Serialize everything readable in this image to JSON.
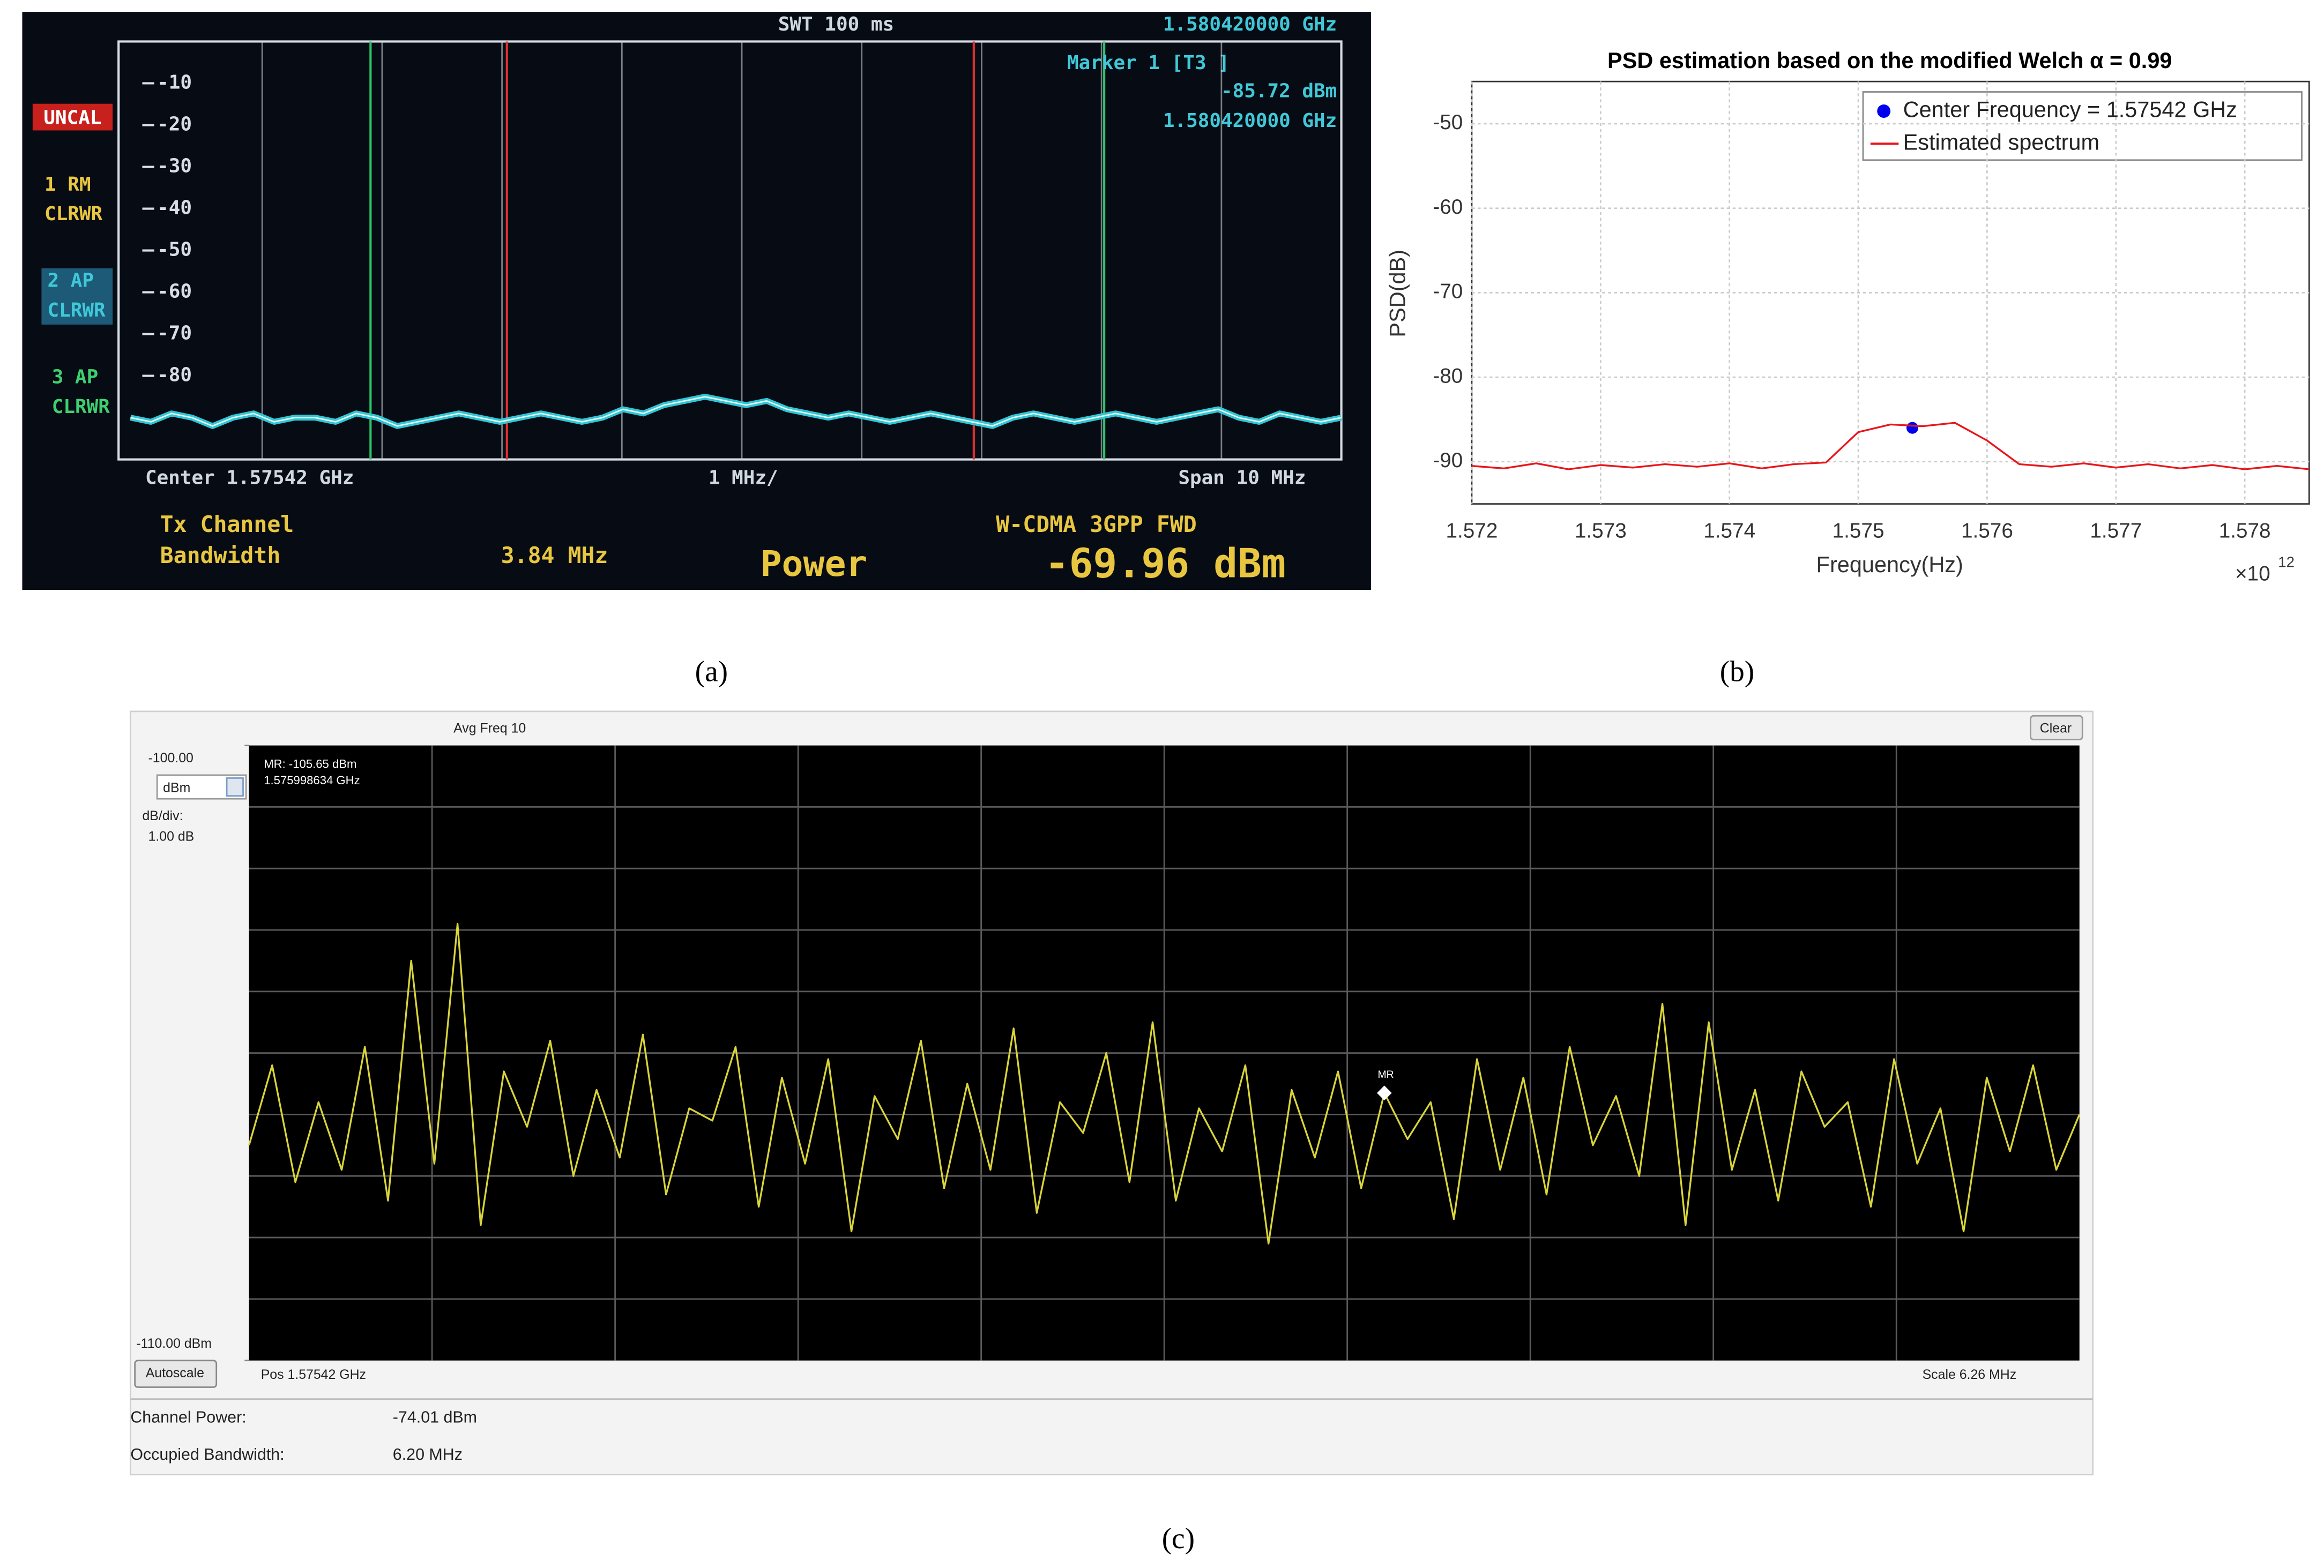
{
  "chart_data": [
    {
      "type": "line",
      "caption": "(a)",
      "texts": [
        "SWT 100 ms",
        "1.580420000 GHz",
        "Marker 1 [T3 ]",
        "-85.72 dBm",
        "1.580420000 GHz",
        "UNCAL",
        "1 RM",
        "CLRWR",
        "2 AP",
        "CLRWR",
        "3 AP",
        "CLRWR",
        "Center 1.57542 GHz",
        "1 MHz/",
        "Span 10 MHz",
        "Tx Channel",
        "Bandwidth",
        "3.84 MHz",
        "W-CDMA 3GPP FWD",
        "Power",
        "-69.96 dBm"
      ],
      "ylim": [
        -100,
        0
      ],
      "yticks": [
        -10,
        -20,
        -30,
        -40,
        -50,
        -60,
        -70,
        -80
      ],
      "color": "#2fc6d6",
      "values": [
        -90,
        -91,
        -89,
        -90,
        -92,
        -90,
        -89,
        -91,
        -90,
        -90,
        -91,
        -89,
        -90,
        -92,
        -91,
        -90,
        -89,
        -90,
        -91,
        -90,
        -89,
        -90,
        -91,
        -90,
        -88,
        -89,
        -87,
        -86,
        -85,
        -86,
        -87,
        -86,
        -88,
        -89,
        -90,
        -89,
        -90,
        -91,
        -90,
        -89,
        -90,
        -91,
        -92,
        -90,
        -89,
        -90,
        -91,
        -90,
        -89,
        -90,
        -91,
        -90,
        -89,
        -88,
        -90,
        -91,
        -89,
        -90,
        -91,
        -90
      ]
    },
    {
      "type": "line",
      "caption": "(b)",
      "title": "PSD estimation based on the modified Welch  α = 0.99",
      "xlabel": "Frequency(Hz)",
      "ylabel": "PSD(dB)",
      "x_multiplier": "×10",
      "x_multiplier_exp": "12",
      "xlim": [
        1.572,
        1.5785
      ],
      "ylim": [
        -95,
        -45
      ],
      "xticks": [
        1.572,
        1.573,
        1.574,
        1.575,
        1.576,
        1.577,
        1.578
      ],
      "yticks": [
        -90,
        -80,
        -70,
        -60,
        -50
      ],
      "grid": true,
      "series": [
        {
          "name": "Center Frequency = 1.57542 GHz",
          "color": "#0000ee",
          "mode": "markers",
          "x": [
            1.57542
          ],
          "values": [
            -86
          ]
        },
        {
          "name": "Estimated spectrum",
          "color": "#e8161b",
          "mode": "lines",
          "x": [
            1.572,
            1.57225,
            1.5725,
            1.57275,
            1.573,
            1.57325,
            1.5735,
            1.57375,
            1.574,
            1.57425,
            1.5745,
            1.57475,
            1.575,
            1.57525,
            1.5755,
            1.57575,
            1.576,
            1.57625,
            1.5765,
            1.57675,
            1.577,
            1.57725,
            1.5775,
            1.57775,
            1.578,
            1.57825,
            1.5785
          ],
          "values": [
            -90.5,
            -90.8,
            -90.2,
            -90.9,
            -90.4,
            -90.7,
            -90.3,
            -90.6,
            -90.2,
            -90.8,
            -90.3,
            -90.1,
            -86.5,
            -85.6,
            -85.8,
            -85.4,
            -87.5,
            -90.3,
            -90.6,
            -90.2,
            -90.7,
            -90.3,
            -90.8,
            -90.4,
            -90.9,
            -90.5,
            -90.9
          ]
        }
      ]
    },
    {
      "type": "line",
      "caption": "(c)",
      "texts": [
        "Avg Freq 10",
        "Clear",
        "dBm",
        "dB/div:",
        "1.00 dB",
        "MR: -105.65 dBm",
        "1.575998634 GHz",
        "MR",
        "Autoscale",
        "Pos 1.57542 GHz",
        "Scale 6.26 MHz",
        "Channel Power:",
        "-74.01 dBm",
        "Occupied Bandwidth:",
        "6.20 MHz"
      ],
      "ylim": [
        -110,
        -100
      ],
      "yticks": [
        {
          "value": -100,
          "label": "-100.00"
        },
        {
          "value": -110,
          "label": "-110.00 dBm"
        }
      ],
      "color": "#d9d43a",
      "values": [
        -106.5,
        -105.2,
        -107.1,
        -105.8,
        -106.9,
        -104.9,
        -107.4,
        -103.5,
        -106.8,
        -102.9,
        -107.8,
        -105.3,
        -106.2,
        -104.8,
        -107.0,
        -105.6,
        -106.7,
        -104.7,
        -107.3,
        -105.9,
        -106.1,
        -104.9,
        -107.5,
        -105.4,
        -106.8,
        -105.1,
        -107.9,
        -105.7,
        -106.4,
        -104.8,
        -107.2,
        -105.5,
        -106.9,
        -104.6,
        -107.6,
        -105.8,
        -106.3,
        -105.0,
        -107.1,
        -104.5,
        -107.4,
        -105.9,
        -106.6,
        -105.2,
        -108.1,
        -105.6,
        -106.7,
        -105.3,
        -107.2,
        -105.65,
        -106.4,
        -105.8,
        -107.7,
        -105.1,
        -106.9,
        -105.4,
        -107.3,
        -104.9,
        -106.5,
        -105.7,
        -107.0,
        -104.2,
        -107.8,
        -104.5,
        -106.9,
        -105.6,
        -107.4,
        -105.3,
        -106.2,
        -105.8,
        -107.5,
        -105.1,
        -106.8,
        -105.9,
        -107.9,
        -105.4,
        -106.6,
        -105.2,
        -106.9,
        -106.0
      ]
    }
  ]
}
